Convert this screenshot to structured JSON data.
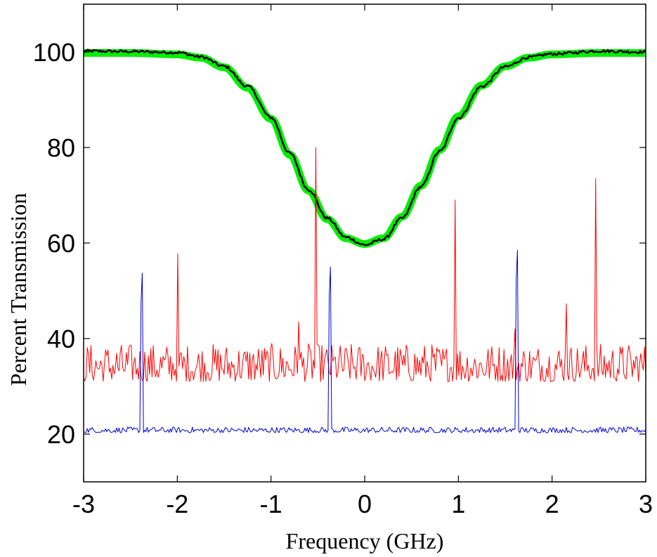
{
  "chart_data": {
    "type": "line",
    "title": "",
    "xlabel": "Frequency (GHz)",
    "ylabel": "Percent Transmission",
    "xlim": [
      -3,
      3
    ],
    "ylim": [
      10,
      110
    ],
    "xticks": [
      -3,
      -2,
      -1,
      0,
      1,
      2,
      3
    ],
    "xtick_labels": [
      "-3",
      "-2",
      "-1",
      "0",
      "1",
      "2",
      "3"
    ],
    "yticks": [
      20,
      40,
      60,
      80,
      100
    ],
    "ytick_labels": [
      "20",
      "40",
      "60",
      "80",
      "100"
    ],
    "grid": false,
    "legend": "none",
    "series": [
      {
        "color": "#00ee00",
        "style": "thick-line",
        "x": [
          -3.0,
          -2.5,
          -2.0,
          -1.75,
          -1.5,
          -1.25,
          -1.0,
          -0.8,
          -0.6,
          -0.4,
          -0.2,
          0.0,
          0.2,
          0.4,
          0.6,
          0.8,
          1.0,
          1.25,
          1.5,
          1.75,
          2.0,
          2.5,
          3.0
        ],
        "y": [
          99.8,
          99.8,
          99.5,
          98.8,
          96.8,
          92.5,
          86.0,
          78.5,
          71.0,
          65.0,
          61.0,
          59.8,
          61.0,
          65.5,
          72.0,
          79.5,
          86.5,
          93.0,
          97.0,
          98.8,
          99.5,
          99.8,
          99.8
        ]
      },
      {
        "color": "#000000",
        "style": "line",
        "x": [
          -3.0,
          -2.5,
          -2.0,
          -1.75,
          -1.5,
          -1.25,
          -1.0,
          -0.8,
          -0.6,
          -0.4,
          -0.2,
          0.0,
          0.2,
          0.4,
          0.6,
          0.8,
          1.0,
          1.25,
          1.5,
          1.75,
          2.0,
          2.5,
          3.0
        ],
        "y": [
          100.2,
          100.1,
          99.9,
          99.0,
          97.0,
          92.8,
          86.3,
          78.8,
          71.2,
          65.2,
          61.2,
          59.6,
          60.8,
          65.2,
          71.8,
          79.2,
          86.2,
          92.8,
          96.9,
          98.9,
          99.6,
          100.2,
          100.0
        ]
      },
      {
        "color": "#ff0000",
        "style": "noisy-line",
        "baseline_range": [
          31,
          39
        ],
        "peaks": [
          {
            "x": -2.0,
            "y": 57.8
          },
          {
            "x": -0.52,
            "y": 80.0
          },
          {
            "x": 0.97,
            "y": 69.0
          },
          {
            "x": 2.47,
            "y": 73.5
          },
          {
            "x": -0.7,
            "y": 43.5
          },
          {
            "x": 2.15,
            "y": 47.3
          },
          {
            "x": 1.6,
            "y": 42.0
          }
        ]
      },
      {
        "color": "#0000cc",
        "style": "noisy-line",
        "baseline_range": [
          20.3,
          21.5
        ],
        "peaks": [
          {
            "x": -2.38,
            "y": 53.7
          },
          {
            "x": -0.37,
            "y": 55.0
          },
          {
            "x": 1.63,
            "y": 58.5
          }
        ]
      }
    ]
  }
}
